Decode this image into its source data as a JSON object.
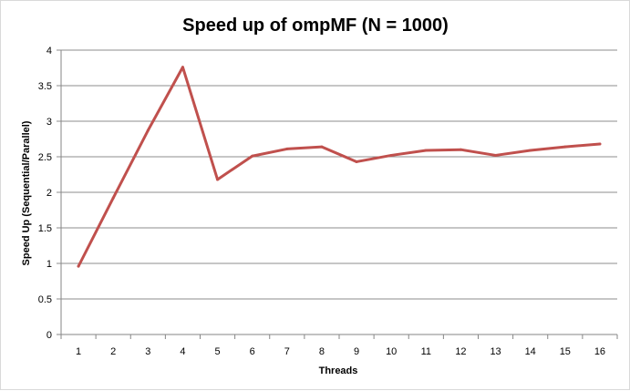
{
  "chart_data": {
    "type": "line",
    "title": "Speed up of ompMF (N = 1000)",
    "xlabel": "Threads",
    "ylabel": "Speed Up (Sequential/Parallel)",
    "categories": [
      "1",
      "2",
      "3",
      "4",
      "5",
      "6",
      "7",
      "8",
      "9",
      "10",
      "11",
      "12",
      "13",
      "14",
      "15",
      "16"
    ],
    "series": [
      {
        "values": [
          0.96,
          1.92,
          2.87,
          3.76,
          2.18,
          2.51,
          2.61,
          2.64,
          2.43,
          2.52,
          2.59,
          2.6,
          2.52,
          2.59,
          2.64,
          2.68
        ],
        "color": "#c0504d"
      }
    ],
    "ylim": [
      0,
      4
    ],
    "yticks": [
      "0",
      "0.5",
      "1",
      "1.5",
      "2",
      "2.5",
      "3",
      "3.5",
      "4"
    ],
    "grid": true,
    "legend": "none"
  }
}
